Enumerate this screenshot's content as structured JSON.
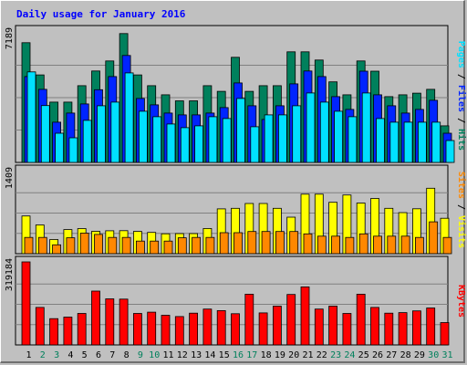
{
  "chart_data": {
    "title": "Daily usage for January 2016",
    "days": [
      "1",
      "2",
      "3",
      "4",
      "5",
      "6",
      "7",
      "8",
      "9",
      "10",
      "11",
      "12",
      "13",
      "14",
      "15",
      "16",
      "17",
      "18",
      "19",
      "20",
      "21",
      "22",
      "23",
      "24",
      "25",
      "26",
      "27",
      "28",
      "29",
      "30",
      "31"
    ],
    "weekend_days": [
      "2",
      "3",
      "9",
      "10",
      "16",
      "17",
      "23",
      "24",
      "30",
      "31"
    ],
    "colors": {
      "hits": "#00805c",
      "files": "#0024ff",
      "pages": "#00e0ff",
      "visits": "#ffff00",
      "sites": "#ff8800",
      "kbytes": "#ff0000",
      "title": "#0000ff",
      "weekend": "#00805c",
      "weekday": "#000000"
    },
    "panels": [
      {
        "type": "bar",
        "max_label": "7189",
        "axis_label": [
          "Pages",
          " / ",
          "Files",
          " / ",
          "Hits"
        ],
        "axis_label_colors": [
          "#00e0ff",
          "#000000",
          "#0024ff",
          "#000000",
          "#00805c"
        ],
        "ylim": [
          0,
          7189
        ],
        "series": [
          {
            "name": "Hits",
            "color": "#00805c",
            "values": [
              6550,
              4790,
              3300,
              3300,
              4200,
              5000,
              5550,
              7050,
              4790,
              4200,
              3700,
              3370,
              3370,
              4200,
              3890,
              5750,
              3890,
              4200,
              4200,
              6050,
              6050,
              5600,
              4410,
              3700,
              5550,
              4990,
              3600,
              3700,
              3790,
              4000,
              2000
            ]
          },
          {
            "name": "Files",
            "color": "#0024ff",
            "values": [
              4700,
              4000,
              2200,
              2700,
              3200,
              3980,
              4700,
              5850,
              3500,
              3150,
              2700,
              2600,
              2600,
              2700,
              3000,
              4350,
              3100,
              2350,
              3100,
              4300,
              5000,
              4700,
              3600,
              2900,
              4990,
              3700,
              3100,
              2700,
              2900,
              3400,
              1600
            ]
          },
          {
            "name": "Pages",
            "color": "#00e0ff",
            "values": [
              4950,
              3110,
              1600,
              1350,
              2300,
              3100,
              3300,
              4900,
              2800,
              2500,
              2100,
              1900,
              2000,
              2500,
              2400,
              3500,
              1950,
              2600,
              2600,
              3100,
              3800,
              3300,
              2800,
              2500,
              3800,
              2400,
              2200,
              2200,
              2200,
              2200,
              1200
            ]
          }
        ]
      },
      {
        "type": "bar",
        "max_label": "1409",
        "axis_label": [
          "Sites",
          " / ",
          "Visits"
        ],
        "axis_label_colors": [
          "#ff8800",
          "#000000",
          "#ffff00"
        ],
        "ylim": [
          0,
          1409
        ],
        "series": [
          {
            "name": "Visits",
            "color": "#ffff00",
            "values": [
              640,
              488,
              240,
              408,
              426,
              380,
              388,
              390,
              378,
              360,
              338,
              340,
              340,
              427,
              760,
              770,
              852,
              852,
              770,
              620,
              1010,
              1010,
              872,
              996,
              860,
              936,
              770,
              696,
              762,
              1110,
              600
            ]
          },
          {
            "name": "Sites",
            "color": "#ff8800",
            "values": [
              276,
              276,
              150,
              270,
              348,
              327,
              276,
              276,
              214,
              214,
              214,
              270,
              276,
              276,
              356,
              356,
              376,
              376,
              376,
              376,
              336,
              298,
              298,
              276,
              336,
              298,
              298,
              298,
              276,
              540,
              276
            ]
          }
        ]
      },
      {
        "type": "bar",
        "max_label": "319184",
        "axis_label": [
          "KBytes"
        ],
        "axis_label_colors": [
          "#ff0000"
        ],
        "ylim": [
          0,
          319184
        ],
        "series": [
          {
            "name": "KBytes",
            "color": "#ff0000",
            "values": [
              319184,
              144000,
              101000,
              107000,
              121000,
              207000,
              177000,
              176000,
              121000,
              126000,
              114000,
              109000,
              122000,
              138000,
              132000,
              120000,
              195000,
              123000,
              149000,
              194000,
              223000,
              138000,
              149000,
              121000,
              195000,
              144000,
              122000,
              124000,
              131000,
              142000,
              86000
            ]
          }
        ]
      }
    ]
  }
}
